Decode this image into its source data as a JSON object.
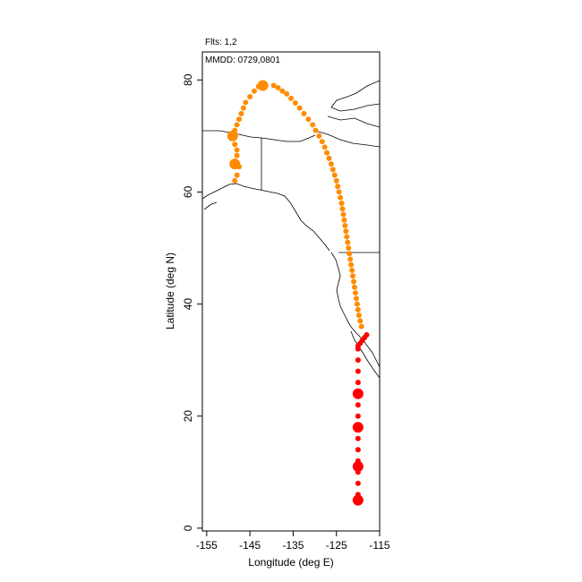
{
  "chart_data": {
    "type": "scatter",
    "title": "",
    "annotations": {
      "flights": "Flts: 1,2",
      "dates": "MMDD: 0729,0801"
    },
    "xlabel": "Longitude (deg E)",
    "ylabel": "Latitude (deg N)",
    "xlim": [
      -156,
      -115
    ],
    "ylim": [
      -0.5,
      85
    ],
    "xticks": [
      -155,
      -145,
      -135,
      -125,
      -115
    ],
    "yticks": [
      0,
      20,
      40,
      60,
      80
    ],
    "xtick_labels": [
      "-155",
      "-145",
      "-135",
      "-125",
      "-115"
    ],
    "ytick_labels": [
      "0",
      "20",
      "40",
      "60",
      "80"
    ],
    "grid": false,
    "map_background": "coastlines and political borders of western North America",
    "series": [
      {
        "color": "#ff8c00",
        "points": [
          [
            -148.5,
            62.0
          ],
          [
            -148.0,
            63.0
          ],
          [
            -147.5,
            64.5
          ],
          [
            -148.5,
            65.5
          ],
          [
            -148.0,
            66.5
          ],
          [
            -148.0,
            67.5
          ],
          [
            -148.5,
            68.5
          ],
          [
            -149.0,
            70.0
          ],
          [
            -148.5,
            71.0
          ],
          [
            -148.0,
            72.0
          ],
          [
            -147.5,
            73.0
          ],
          [
            -147.0,
            74.0
          ],
          [
            -146.5,
            75.0
          ],
          [
            -146.0,
            76.0
          ],
          [
            -145.0,
            77.0
          ],
          [
            -144.0,
            78.0
          ],
          [
            -143.0,
            78.8
          ],
          [
            -142.5,
            79.0
          ],
          [
            -141.5,
            79.2
          ],
          [
            -139.5,
            79.0
          ],
          [
            -138.5,
            78.6
          ],
          [
            -137.5,
            78.0
          ],
          [
            -136.5,
            77.5
          ],
          [
            -135.5,
            76.7
          ],
          [
            -134.5,
            75.9
          ],
          [
            -133.5,
            75.0
          ],
          [
            -132.5,
            74.0
          ],
          [
            -131.5,
            73.0
          ],
          [
            -130.5,
            72.0
          ],
          [
            -129.8,
            71.0
          ],
          [
            -129.0,
            70.0
          ],
          [
            -128.3,
            69.0
          ],
          [
            -127.7,
            68.0
          ],
          [
            -127.2,
            67.0
          ],
          [
            -126.7,
            66.0
          ],
          [
            -126.2,
            65.0
          ],
          [
            -125.8,
            64.0
          ],
          [
            -125.4,
            63.0
          ],
          [
            -125.0,
            62.0
          ],
          [
            -124.7,
            61.0
          ],
          [
            -124.4,
            60.0
          ],
          [
            -124.1,
            59.0
          ],
          [
            -123.8,
            58.0
          ],
          [
            -123.6,
            57.0
          ],
          [
            -123.4,
            56.0
          ],
          [
            -123.2,
            55.0
          ],
          [
            -123.0,
            54.0
          ],
          [
            -122.8,
            53.0
          ],
          [
            -122.6,
            52.0
          ],
          [
            -122.4,
            51.0
          ],
          [
            -122.2,
            50.0
          ],
          [
            -122.0,
            49.0
          ],
          [
            -121.8,
            48.0
          ],
          [
            -121.6,
            47.0
          ],
          [
            -121.4,
            46.0
          ],
          [
            -121.2,
            45.0
          ],
          [
            -121.0,
            44.0
          ],
          [
            -120.8,
            43.0
          ],
          [
            -120.6,
            42.0
          ],
          [
            -120.4,
            41.0
          ],
          [
            -120.2,
            40.0
          ],
          [
            -120.0,
            39.0
          ],
          [
            -119.8,
            38.0
          ],
          [
            -119.5,
            37.0
          ],
          [
            -119.2,
            36.0
          ]
        ],
        "clusters": [
          [
            -149.0,
            70.0
          ],
          [
            -148.5,
            65.0
          ],
          [
            -142.0,
            79.0
          ]
        ]
      },
      {
        "color": "#ff0000",
        "points": [
          [
            -118.0,
            34.5
          ],
          [
            -118.5,
            34.0
          ],
          [
            -119.0,
            33.5
          ],
          [
            -119.5,
            33.0
          ],
          [
            -120.0,
            32.5
          ],
          [
            -120.0,
            32.0
          ],
          [
            -120.0,
            30.0
          ],
          [
            -120.0,
            28.0
          ],
          [
            -120.0,
            26.0
          ],
          [
            -120.0,
            24.0
          ],
          [
            -120.0,
            22.0
          ],
          [
            -120.0,
            20.0
          ],
          [
            -120.0,
            18.0
          ],
          [
            -120.0,
            16.0
          ],
          [
            -120.0,
            14.0
          ],
          [
            -120.0,
            12.0
          ],
          [
            -120.0,
            11.0
          ],
          [
            -120.0,
            10.0
          ],
          [
            -120.0,
            8.0
          ],
          [
            -120.0,
            6.0
          ],
          [
            -120.0,
            5.0
          ]
        ],
        "clusters": [
          [
            -120.0,
            24.0
          ],
          [
            -120.0,
            18.0
          ],
          [
            -120.0,
            11.0
          ],
          [
            -120.0,
            5.0
          ]
        ]
      }
    ]
  }
}
